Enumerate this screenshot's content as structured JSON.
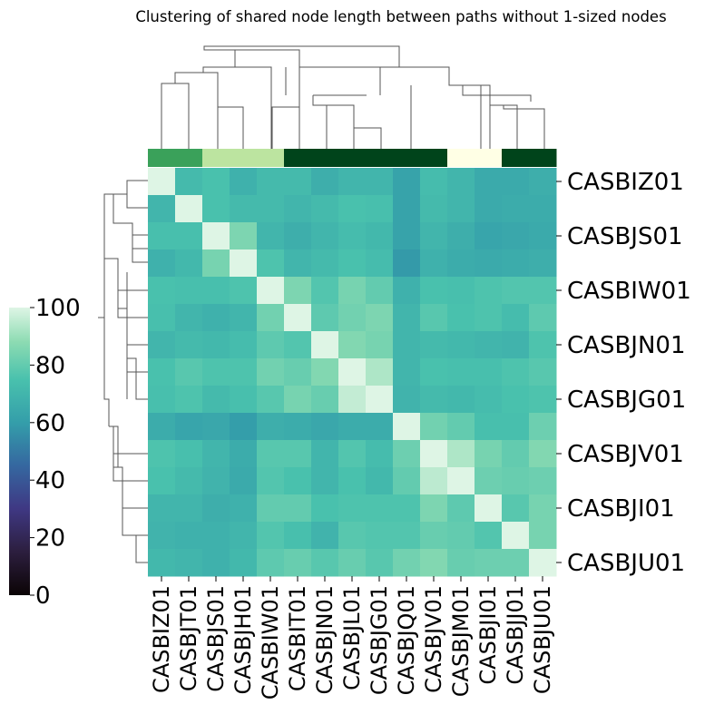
{
  "chart_data": {
    "type": "heatmap",
    "title": "Clustering of shared node length between paths without 1-sized nodes",
    "colormap": "mako",
    "vmin": 0,
    "vmax": 100,
    "labels": [
      "CASBIZ01",
      "CASBJT01",
      "CASBJS01",
      "CASBJH01",
      "CASBIW01",
      "CASBIT01",
      "CASBJN01",
      "CASBJL01",
      "CASBJG01",
      "CASBJQ01",
      "CASBJV01",
      "CASBJM01",
      "CASBJI01",
      "CASBJJ01",
      "CASBJU01"
    ],
    "row_tick_labels": [
      "CASBIZ01",
      "CASBJS01",
      "CASBIW01",
      "CASBJN01",
      "CASBJG01",
      "CASBJV01",
      "CASBJI01",
      "CASBJU01"
    ],
    "col_tick_labels": [
      "CASBIZ01",
      "CASBJT01",
      "CASBJS01",
      "CASBJH01",
      "CASBIW01",
      "CASBIT01",
      "CASBJN01",
      "CASBJL01",
      "CASBJG01",
      "CASBJQ01",
      "CASBJV01",
      "CASBJM01",
      "CASBJI01",
      "CASBJJ01",
      "CASBJU01"
    ],
    "colorbar_ticks": [
      "0",
      "20",
      "40",
      "60",
      "80",
      "100"
    ],
    "values": [
      [
        100,
        72,
        75,
        68,
        72,
        72,
        67,
        70,
        70,
        62,
        73,
        70,
        65,
        65,
        67
      ],
      [
        70,
        100,
        75,
        72,
        72,
        70,
        72,
        75,
        74,
        62,
        72,
        70,
        65,
        66,
        66
      ],
      [
        74,
        74,
        100,
        85,
        70,
        67,
        70,
        73,
        71,
        62,
        70,
        67,
        63,
        64,
        65
      ],
      [
        68,
        71,
        84,
        100,
        76,
        70,
        72,
        75,
        73,
        59,
        68,
        66,
        65,
        66,
        67
      ],
      [
        75,
        74,
        74,
        76,
        100,
        85,
        77,
        84,
        80,
        68,
        75,
        74,
        76,
        77,
        77
      ],
      [
        74,
        70,
        68,
        70,
        83,
        100,
        79,
        83,
        85,
        70,
        78,
        75,
        76,
        73,
        79
      ],
      [
        70,
        72,
        71,
        73,
        79,
        77,
        100,
        86,
        84,
        70,
        72,
        71,
        70,
        69,
        76
      ],
      [
        75,
        78,
        76,
        76,
        83,
        81,
        86,
        100,
        93,
        70,
        75,
        74,
        74,
        76,
        78
      ],
      [
        74,
        76,
        72,
        74,
        78,
        84,
        81,
        96,
        100,
        69,
        72,
        71,
        73,
        75,
        76
      ],
      [
        66,
        63,
        64,
        60,
        67,
        66,
        64,
        66,
        66,
        100,
        83,
        80,
        74,
        74,
        82
      ],
      [
        76,
        74,
        70,
        66,
        78,
        78,
        70,
        77,
        73,
        82,
        100,
        93,
        84,
        80,
        86
      ],
      [
        75,
        72,
        69,
        65,
        77,
        75,
        70,
        75,
        71,
        80,
        95,
        100,
        82,
        81,
        82
      ],
      [
        70,
        70,
        67,
        68,
        80,
        80,
        75,
        76,
        76,
        76,
        85,
        79,
        100,
        78,
        84
      ],
      [
        69,
        68,
        68,
        70,
        77,
        74,
        69,
        78,
        77,
        77,
        81,
        80,
        77,
        100,
        84
      ],
      [
        71,
        70,
        68,
        71,
        79,
        81,
        78,
        81,
        78,
        83,
        86,
        81,
        82,
        82,
        100
      ]
    ],
    "col_colors": [
      "#3aa15a",
      "#3aa15a",
      "#bce4a0",
      "#bce4a0",
      "#bce4a0",
      "#00441b",
      "#00441b",
      "#00441b",
      "#00441b",
      "#00441b",
      "#00441b",
      "#ffffe5",
      "#ffffe5",
      "#00441b",
      "#00441b"
    ]
  }
}
